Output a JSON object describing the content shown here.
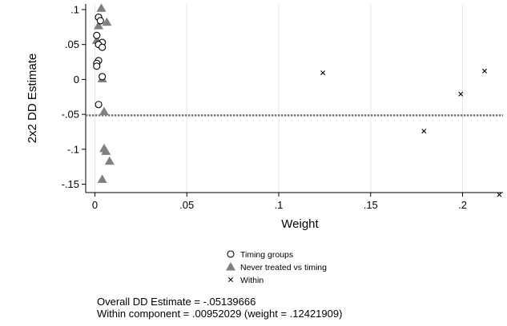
{
  "chart_data": {
    "type": "scatter",
    "xlabel": "Weight",
    "ylabel": "2x2 DD Estimate",
    "xlim": [
      -0.005,
      0.222
    ],
    "ylim": [
      -0.162,
      0.108
    ],
    "x_ticks": [
      {
        "value": 0,
        "label": "0"
      },
      {
        "value": 0.05,
        "label": ".05"
      },
      {
        "value": 0.1,
        "label": ".1"
      },
      {
        "value": 0.15,
        "label": ".15"
      },
      {
        "value": 0.2,
        "label": ".2"
      }
    ],
    "y_ticks": [
      {
        "value": 0.1,
        "label": ".1"
      },
      {
        "value": 0.05,
        "label": ".05"
      },
      {
        "value": 0,
        "label": "0"
      },
      {
        "value": -0.05,
        "label": "-.05"
      },
      {
        "value": -0.1,
        "label": "-.1"
      },
      {
        "value": -0.15,
        "label": "-.15"
      }
    ],
    "grid": "vertical",
    "reference_line": {
      "y": -0.05139666,
      "style": "dotted"
    },
    "legend_position": "bottom-center",
    "series": [
      {
        "name": "Timing groups",
        "marker": "circle-hollow",
        "color": "#000000",
        "points": [
          [
            0.002,
            0.089
          ],
          [
            0.003,
            0.084
          ],
          [
            0.001,
            0.063
          ],
          [
            0.004,
            0.053
          ],
          [
            0.002,
            0.05
          ],
          [
            0.004,
            0.046
          ],
          [
            0.002,
            0.027
          ],
          [
            0.001,
            0.023
          ],
          [
            0.001,
            0.019
          ],
          [
            0.004,
            0.004
          ],
          [
            0.002,
            -0.036
          ]
        ]
      },
      {
        "name": "Never treated vs timing",
        "marker": "triangle",
        "color": "#808080",
        "points": [
          [
            0.0035,
            0.102
          ],
          [
            0.0065,
            0.082
          ],
          [
            0.002,
            0.077
          ],
          [
            0.001,
            0.056
          ],
          [
            0.004,
            0.001
          ],
          [
            0.005,
            -0.046
          ],
          [
            0.005,
            -0.099
          ],
          [
            0.006,
            -0.103
          ],
          [
            0.008,
            -0.117
          ],
          [
            0.004,
            -0.143
          ]
        ]
      },
      {
        "name": "Within",
        "marker": "x",
        "color": "#000000",
        "points": [
          [
            0.124,
            0.0095
          ],
          [
            0.212,
            0.012
          ],
          [
            0.199,
            -0.021
          ],
          [
            0.179,
            -0.074
          ],
          [
            0.22,
            -0.165
          ]
        ]
      }
    ]
  },
  "notes": {
    "line1": "Overall DD Estimate = -.05139666",
    "line2": "Within component = .00952029 (weight = .12421909)"
  }
}
